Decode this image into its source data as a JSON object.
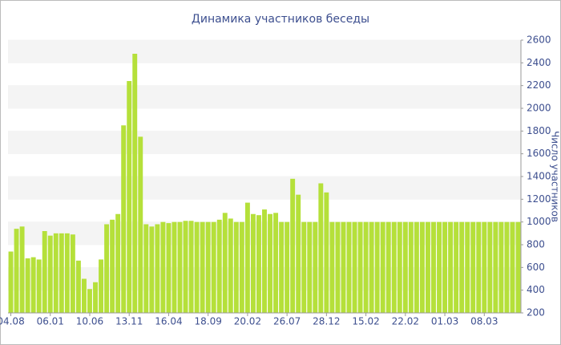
{
  "chart_data": {
    "type": "bar",
    "title": "Динамика участников беседы",
    "y_label": "Число участников",
    "categories": [
      "04.08",
      null,
      null,
      null,
      null,
      null,
      null,
      "06.01",
      null,
      null,
      null,
      null,
      null,
      null,
      "10.06",
      null,
      null,
      null,
      null,
      null,
      null,
      "13.11",
      null,
      null,
      null,
      null,
      null,
      null,
      "16.04",
      null,
      null,
      null,
      null,
      null,
      null,
      "18.09",
      null,
      null,
      null,
      null,
      null,
      null,
      "20.02",
      null,
      null,
      null,
      null,
      null,
      null,
      "26.07",
      null,
      null,
      null,
      null,
      null,
      null,
      "28.12",
      null,
      null,
      null,
      null,
      null,
      null,
      "15.02",
      null,
      null,
      null,
      null,
      null,
      null,
      "22.02",
      null,
      null,
      null,
      null,
      null,
      null,
      "01.03",
      null,
      null,
      null,
      null,
      null,
      null,
      "08.03",
      null,
      null,
      null,
      null,
      null,
      null
    ],
    "values": [
      740,
      940,
      960,
      680,
      690,
      670,
      920,
      880,
      900,
      900,
      900,
      890,
      660,
      500,
      410,
      470,
      670,
      980,
      1020,
      1070,
      1850,
      2240,
      2480,
      1750,
      980,
      960,
      980,
      1000,
      990,
      1000,
      1000,
      1010,
      1010,
      1000,
      1000,
      1000,
      1000,
      1020,
      1080,
      1030,
      1000,
      1000,
      1170,
      1070,
      1060,
      1110,
      1070,
      1080,
      1000,
      1000,
      1380,
      1240,
      1000,
      1000,
      1000,
      1340,
      1260,
      1000,
      1000,
      1000,
      1000,
      1000,
      1000,
      1000,
      1000,
      1000,
      1000,
      1000,
      1000,
      1000,
      1000,
      1000,
      1000,
      1000,
      1000,
      1000,
      1000,
      1000,
      1000,
      1000,
      1000,
      1000,
      1000,
      1000,
      1000,
      1000,
      1000,
      1000,
      1000,
      1000,
      1000
    ],
    "color": "#b5e03a",
    "ylim": [
      200,
      2600
    ],
    "yticks": [
      200,
      400,
      600,
      800,
      1000,
      1200,
      1400,
      1600,
      1800,
      2000,
      2200,
      2400,
      2600
    ],
    "y_axis_side": "right",
    "grid": true
  }
}
